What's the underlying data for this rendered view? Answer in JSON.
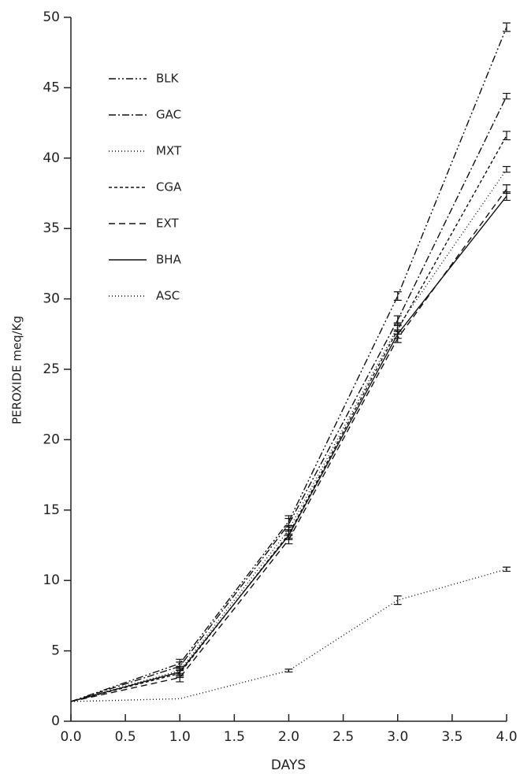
{
  "chart_data": {
    "type": "line",
    "x_label": "DAYS",
    "y_label": "PEROXIDE meq/Kg",
    "x": [
      0,
      1,
      2,
      3,
      4
    ],
    "xlim": [
      0,
      4
    ],
    "xticks": [
      {
        "value": 0,
        "label": "0.0"
      },
      {
        "value": 0.5,
        "label": "0.5"
      },
      {
        "value": 1,
        "label": "1.0"
      },
      {
        "value": 1.5,
        "label": "1.5"
      },
      {
        "value": 2,
        "label": "2.0"
      },
      {
        "value": 2.5,
        "label": "2.5"
      },
      {
        "value": 3,
        "label": "3.0"
      },
      {
        "value": 3.5,
        "label": "3.5"
      },
      {
        "value": 4,
        "label": "4.0"
      }
    ],
    "ylim": [
      0,
      50
    ],
    "yticks": [
      0,
      5,
      10,
      15,
      20,
      25,
      30,
      35,
      40,
      45,
      50
    ],
    "legend": "upper left",
    "series": [
      {
        "name": "BLK",
        "color": "#111111",
        "dash": "9,3,2,3,2,3",
        "values": [
          1.4,
          4.1,
          14.2,
          30.2,
          49.3
        ],
        "errors": [
          null,
          0.3,
          0.4,
          0.3,
          0.3
        ]
      },
      {
        "name": "GAC",
        "color": "#111111",
        "dash": "9,3,2,3",
        "values": [
          1.4,
          3.9,
          14.0,
          28.5,
          44.4
        ],
        "errors": [
          null,
          0.3,
          0.4,
          0.3,
          0.2
        ]
      },
      {
        "name": "MXT",
        "color": "#111111",
        "dash": "1,3",
        "values": [
          1.4,
          3.6,
          13.6,
          28.0,
          39.2
        ],
        "errors": [
          null,
          0.3,
          0.3,
          0.3,
          0.2
        ]
      },
      {
        "name": "CGA",
        "color": "#111111",
        "dash": "4,3",
        "values": [
          1.4,
          3.4,
          13.3,
          27.8,
          41.6
        ],
        "errors": [
          null,
          0.3,
          0.3,
          0.3,
          0.3
        ]
      },
      {
        "name": "EXT",
        "color": "#111111",
        "dash": "8,5",
        "values": [
          1.4,
          3.1,
          12.9,
          27.2,
          37.8
        ],
        "errors": [
          null,
          0.3,
          0.3,
          0.3,
          0.3
        ]
      },
      {
        "name": "BHA",
        "color": "#111111",
        "dash": "none",
        "values": [
          1.4,
          3.5,
          13.2,
          27.5,
          37.3
        ],
        "errors": [
          null,
          0.3,
          0.3,
          0.3,
          0.3
        ]
      },
      {
        "name": "ASC",
        "color": "#111111",
        "dash": "1,3",
        "values": [
          1.4,
          1.6,
          3.6,
          8.6,
          10.8
        ],
        "errors": [
          null,
          null,
          0.1,
          0.3,
          0.15
        ]
      }
    ]
  }
}
